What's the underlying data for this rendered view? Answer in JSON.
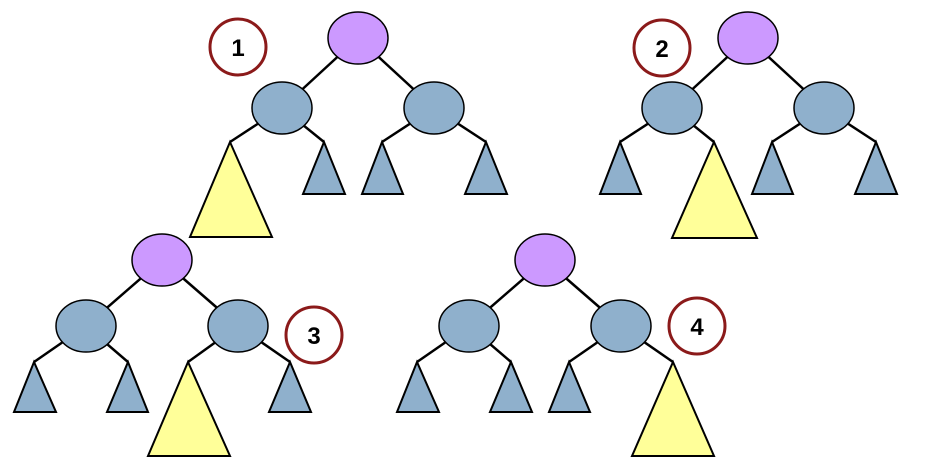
{
  "colors": {
    "root": "#cc99ff",
    "inner": "#8fb0cc",
    "small_subtree": "#8fb0cc",
    "large_subtree": "#ffff99",
    "badge_ring": "#8b1a1a"
  },
  "cases": [
    {
      "label": "1",
      "large_subtree": "left-left"
    },
    {
      "label": "2",
      "large_subtree": "left-right"
    },
    {
      "label": "3",
      "large_subtree": "right-left"
    },
    {
      "label": "4",
      "large_subtree": "right-right"
    }
  ]
}
